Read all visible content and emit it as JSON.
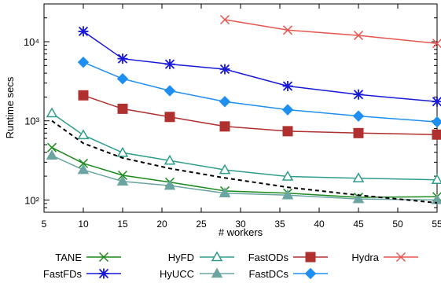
{
  "chart_data": {
    "type": "line",
    "xlabel": "# workers",
    "ylabel": "Runtime secs",
    "x_range": [
      5,
      55
    ],
    "y_range": [
      70,
      30000
    ],
    "y_scale": "log",
    "x_ticks": [
      5,
      10,
      15,
      20,
      25,
      30,
      35,
      40,
      45,
      50,
      55
    ],
    "x_tick_labels": [
      "5",
      "10",
      "15",
      "20",
      "25",
      "30",
      "35",
      "40",
      "45",
      "50",
      "55"
    ],
    "y_ticks": [
      100,
      1000,
      10000
    ],
    "y_tick_labels": [
      "10²",
      "10³",
      "10⁴"
    ],
    "grid": false,
    "legend_position": "bottom",
    "series": [
      {
        "name": "TANE",
        "color": "#1a8a1a",
        "marker": "x",
        "x": [
          6,
          10,
          15,
          21,
          28,
          36,
          45,
          55
        ],
        "values": [
          460,
          290,
          205,
          168,
          130,
          122,
          108,
          110
        ]
      },
      {
        "name": "HyFD",
        "color": "#2e9d8b",
        "marker": "triangle-open",
        "x": [
          6,
          10,
          15,
          21,
          28,
          36,
          45,
          55
        ],
        "values": [
          1250,
          660,
          395,
          315,
          240,
          198,
          188,
          180
        ]
      },
      {
        "name": "FastODs",
        "color": "#b03030",
        "marker": "square-filled",
        "x": [
          10,
          15,
          21,
          28,
          36,
          45,
          55
        ],
        "values": [
          2100,
          1420,
          1120,
          850,
          740,
          700,
          670
        ]
      },
      {
        "name": "Hydra",
        "color": "#e8554e",
        "marker": "x",
        "x": [
          28,
          36,
          45,
          55
        ],
        "values": [
          19000,
          14000,
          12000,
          9500
        ]
      },
      {
        "name": "FastFDs",
        "color": "#1818d8",
        "marker": "asterisk",
        "x": [
          10,
          15,
          21,
          28,
          36,
          45,
          55
        ],
        "values": [
          13500,
          6100,
          5200,
          4500,
          2750,
          2150,
          1750
        ]
      },
      {
        "name": "HyUCC",
        "color": "#6aa5a2",
        "marker": "triangle-filled",
        "x": [
          6,
          10,
          15,
          21,
          28,
          36,
          45,
          55
        ],
        "values": [
          365,
          240,
          172,
          152,
          122,
          115,
          103,
          100
        ]
      },
      {
        "name": "FastDCs",
        "color": "#1e8ff0",
        "marker": "diamond-filled",
        "x": [
          10,
          15,
          21,
          28,
          36,
          45,
          55
        ],
        "values": [
          5500,
          3400,
          2400,
          1750,
          1380,
          1150,
          970
        ]
      },
      {
        "name": "",
        "color": "#000000",
        "marker": "none",
        "dashed": true,
        "x": [
          6,
          10,
          15,
          21,
          28,
          36,
          45,
          55
        ],
        "values": [
          1000,
          520,
          340,
          250,
          190,
          145,
          115,
          92
        ]
      }
    ]
  }
}
